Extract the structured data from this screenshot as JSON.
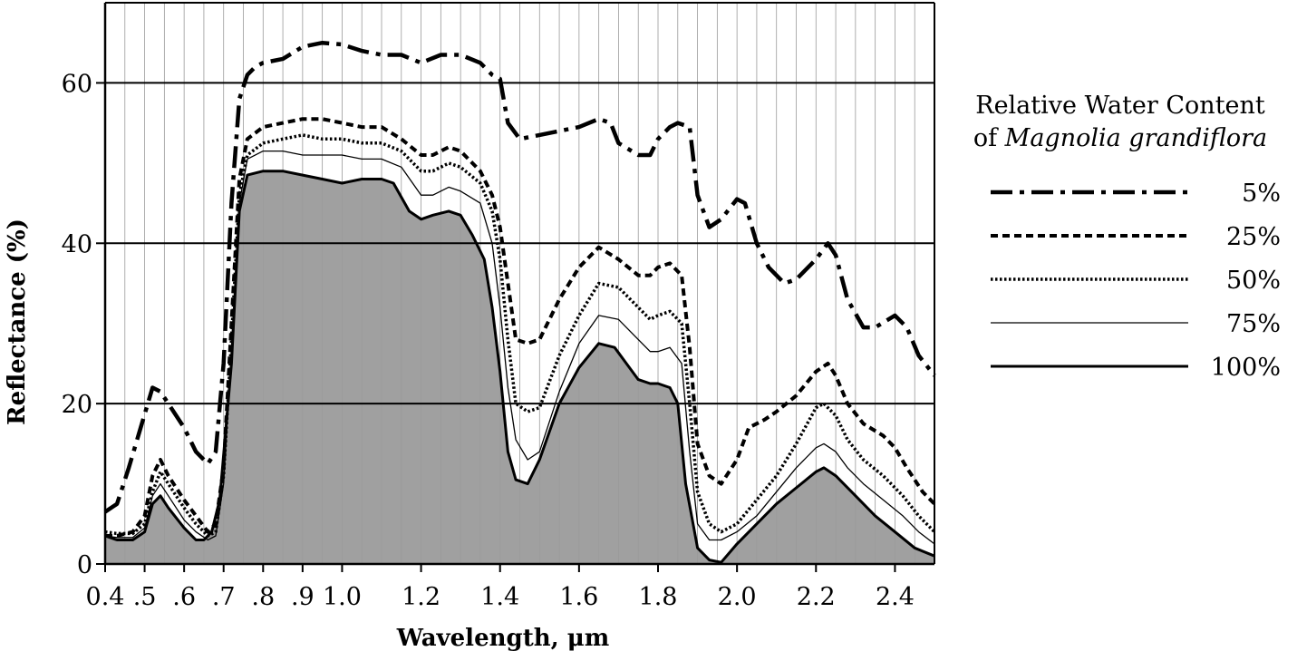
{
  "chart_data": {
    "type": "line",
    "title": "",
    "xlabel": "Wavelength, μm",
    "ylabel": "Reflectance (%)",
    "xlim": [
      0.4,
      2.5
    ],
    "ylim": [
      0,
      70
    ],
    "x_tick_labels": [
      "0.4",
      ".5",
      ".6",
      ".7",
      ".8",
      ".9",
      "1.0",
      "1.2",
      "1.4",
      "1.6",
      "1.8",
      "2.0",
      "2.2",
      "2.4"
    ],
    "x_ticks": [
      0.4,
      0.5,
      0.6,
      0.7,
      0.8,
      0.9,
      1.0,
      1.2,
      1.4,
      1.6,
      1.8,
      2.0,
      2.2,
      2.4
    ],
    "y_ticks": [
      0,
      20,
      40,
      60
    ],
    "y_tick_labels": [
      "0",
      "20",
      "40",
      "60"
    ],
    "vertical_grid_step": 0.05,
    "grid": true,
    "legend_placement": "right",
    "legend_title_line1": "Relative Water Content",
    "legend_title_prefix": "of ",
    "legend_title_species": "Magnolia grandiflora",
    "fill_under_series": "100%",
    "fill_color": "#a0a0a0",
    "series": [
      {
        "name": "5%",
        "style": "dashdot",
        "points": [
          [
            0.4,
            6.5
          ],
          [
            0.43,
            7.5
          ],
          [
            0.46,
            12
          ],
          [
            0.49,
            17
          ],
          [
            0.52,
            22
          ],
          [
            0.54,
            21.5
          ],
          [
            0.56,
            20
          ],
          [
            0.6,
            17
          ],
          [
            0.63,
            14
          ],
          [
            0.66,
            12.5
          ],
          [
            0.68,
            14
          ],
          [
            0.7,
            25
          ],
          [
            0.72,
            45
          ],
          [
            0.74,
            58
          ],
          [
            0.76,
            61
          ],
          [
            0.78,
            62
          ],
          [
            0.8,
            62.5
          ],
          [
            0.85,
            63
          ],
          [
            0.9,
            64.5
          ],
          [
            0.95,
            65
          ],
          [
            1.0,
            64.8
          ],
          [
            1.05,
            64
          ],
          [
            1.1,
            63.5
          ],
          [
            1.15,
            63.5
          ],
          [
            1.2,
            62.5
          ],
          [
            1.25,
            63.5
          ],
          [
            1.3,
            63.5
          ],
          [
            1.35,
            62.5
          ],
          [
            1.38,
            61
          ],
          [
            1.4,
            60.5
          ],
          [
            1.42,
            55
          ],
          [
            1.45,
            53
          ],
          [
            1.5,
            53.5
          ],
          [
            1.55,
            54
          ],
          [
            1.6,
            54.5
          ],
          [
            1.65,
            55.5
          ],
          [
            1.68,
            55
          ],
          [
            1.7,
            52.5
          ],
          [
            1.75,
            51
          ],
          [
            1.78,
            51
          ],
          [
            1.8,
            53
          ],
          [
            1.83,
            54.5
          ],
          [
            1.85,
            55
          ],
          [
            1.88,
            54.5
          ],
          [
            1.9,
            46
          ],
          [
            1.93,
            42
          ],
          [
            1.96,
            43
          ],
          [
            2.0,
            45.5
          ],
          [
            2.02,
            45
          ],
          [
            2.05,
            40
          ],
          [
            2.08,
            37
          ],
          [
            2.12,
            35
          ],
          [
            2.15,
            35.5
          ],
          [
            2.2,
            38
          ],
          [
            2.23,
            40
          ],
          [
            2.25,
            38.5
          ],
          [
            2.28,
            33
          ],
          [
            2.32,
            29.5
          ],
          [
            2.35,
            29.5
          ],
          [
            2.4,
            31
          ],
          [
            2.43,
            29.5
          ],
          [
            2.46,
            26
          ],
          [
            2.5,
            23.5
          ]
        ]
      },
      {
        "name": "25%",
        "style": "dashed",
        "points": [
          [
            0.4,
            3.5
          ],
          [
            0.43,
            3.5
          ],
          [
            0.47,
            4
          ],
          [
            0.5,
            6
          ],
          [
            0.52,
            11
          ],
          [
            0.54,
            13
          ],
          [
            0.56,
            11
          ],
          [
            0.6,
            8
          ],
          [
            0.63,
            6
          ],
          [
            0.66,
            4
          ],
          [
            0.68,
            5
          ],
          [
            0.7,
            12
          ],
          [
            0.72,
            30
          ],
          [
            0.74,
            48
          ],
          [
            0.76,
            53
          ],
          [
            0.8,
            54.5
          ],
          [
            0.85,
            55
          ],
          [
            0.9,
            55.5
          ],
          [
            0.95,
            55.5
          ],
          [
            1.0,
            55
          ],
          [
            1.05,
            54.5
          ],
          [
            1.1,
            54.5
          ],
          [
            1.15,
            53
          ],
          [
            1.2,
            51
          ],
          [
            1.23,
            51
          ],
          [
            1.27,
            52
          ],
          [
            1.3,
            51.5
          ],
          [
            1.35,
            49
          ],
          [
            1.38,
            46
          ],
          [
            1.4,
            42
          ],
          [
            1.42,
            35
          ],
          [
            1.44,
            28
          ],
          [
            1.47,
            27.5
          ],
          [
            1.5,
            28
          ],
          [
            1.55,
            33
          ],
          [
            1.6,
            37
          ],
          [
            1.65,
            39.5
          ],
          [
            1.7,
            38
          ],
          [
            1.75,
            36
          ],
          [
            1.78,
            36
          ],
          [
            1.8,
            37
          ],
          [
            1.83,
            37.5
          ],
          [
            1.86,
            36
          ],
          [
            1.88,
            27
          ],
          [
            1.9,
            15
          ],
          [
            1.93,
            11
          ],
          [
            1.96,
            10
          ],
          [
            2.0,
            13
          ],
          [
            2.03,
            17
          ],
          [
            2.07,
            18
          ],
          [
            2.1,
            19
          ],
          [
            2.15,
            21
          ],
          [
            2.2,
            24
          ],
          [
            2.23,
            25
          ],
          [
            2.25,
            23.5
          ],
          [
            2.28,
            20
          ],
          [
            2.32,
            17.5
          ],
          [
            2.37,
            16
          ],
          [
            2.4,
            14.5
          ],
          [
            2.43,
            12
          ],
          [
            2.47,
            9
          ],
          [
            2.5,
            7.5
          ]
        ]
      },
      {
        "name": "50%",
        "style": "dotted",
        "points": [
          [
            0.4,
            4
          ],
          [
            0.43,
            3.8
          ],
          [
            0.47,
            3.8
          ],
          [
            0.5,
            5
          ],
          [
            0.52,
            9
          ],
          [
            0.54,
            11.5
          ],
          [
            0.56,
            10
          ],
          [
            0.6,
            7
          ],
          [
            0.63,
            5
          ],
          [
            0.66,
            3.5
          ],
          [
            0.68,
            4
          ],
          [
            0.7,
            11
          ],
          [
            0.72,
            28
          ],
          [
            0.74,
            46
          ],
          [
            0.76,
            51
          ],
          [
            0.8,
            52.5
          ],
          [
            0.85,
            53
          ],
          [
            0.9,
            53.5
          ],
          [
            0.95,
            53
          ],
          [
            1.0,
            53
          ],
          [
            1.05,
            52.5
          ],
          [
            1.1,
            52.5
          ],
          [
            1.15,
            51.5
          ],
          [
            1.2,
            49
          ],
          [
            1.23,
            49
          ],
          [
            1.27,
            50
          ],
          [
            1.3,
            49.5
          ],
          [
            1.35,
            47.5
          ],
          [
            1.38,
            44
          ],
          [
            1.4,
            38
          ],
          [
            1.42,
            28
          ],
          [
            1.44,
            20
          ],
          [
            1.47,
            19
          ],
          [
            1.5,
            19.5
          ],
          [
            1.55,
            26
          ],
          [
            1.6,
            31
          ],
          [
            1.65,
            35
          ],
          [
            1.7,
            34.5
          ],
          [
            1.75,
            32
          ],
          [
            1.78,
            30.5
          ],
          [
            1.8,
            31
          ],
          [
            1.83,
            31.5
          ],
          [
            1.86,
            30
          ],
          [
            1.88,
            20
          ],
          [
            1.9,
            9
          ],
          [
            1.93,
            5
          ],
          [
            1.96,
            4
          ],
          [
            2.0,
            5
          ],
          [
            2.05,
            8
          ],
          [
            2.1,
            11
          ],
          [
            2.15,
            15
          ],
          [
            2.2,
            19.5
          ],
          [
            2.22,
            20
          ],
          [
            2.25,
            18.5
          ],
          [
            2.28,
            15.5
          ],
          [
            2.32,
            13
          ],
          [
            2.37,
            11
          ],
          [
            2.42,
            8.5
          ],
          [
            2.46,
            6
          ],
          [
            2.5,
            4
          ]
        ]
      },
      {
        "name": "75%",
        "style": "thin",
        "points": [
          [
            0.4,
            3.5
          ],
          [
            0.43,
            3.3
          ],
          [
            0.47,
            3.3
          ],
          [
            0.5,
            4.5
          ],
          [
            0.52,
            8.5
          ],
          [
            0.54,
            10
          ],
          [
            0.56,
            8.5
          ],
          [
            0.6,
            5.5
          ],
          [
            0.63,
            4
          ],
          [
            0.66,
            3
          ],
          [
            0.68,
            3.5
          ],
          [
            0.7,
            10
          ],
          [
            0.72,
            27
          ],
          [
            0.74,
            45
          ],
          [
            0.76,
            50.5
          ],
          [
            0.8,
            51.5
          ],
          [
            0.85,
            51.5
          ],
          [
            0.9,
            51
          ],
          [
            0.95,
            51
          ],
          [
            1.0,
            51
          ],
          [
            1.05,
            50.5
          ],
          [
            1.1,
            50.5
          ],
          [
            1.15,
            49.5
          ],
          [
            1.2,
            46
          ],
          [
            1.23,
            46
          ],
          [
            1.27,
            47
          ],
          [
            1.3,
            46.5
          ],
          [
            1.35,
            45
          ],
          [
            1.38,
            40
          ],
          [
            1.4,
            32
          ],
          [
            1.42,
            22
          ],
          [
            1.44,
            15.5
          ],
          [
            1.47,
            13
          ],
          [
            1.5,
            14
          ],
          [
            1.55,
            21.5
          ],
          [
            1.6,
            27.5
          ],
          [
            1.65,
            31
          ],
          [
            1.7,
            30.5
          ],
          [
            1.75,
            28
          ],
          [
            1.78,
            26.5
          ],
          [
            1.8,
            26.5
          ],
          [
            1.83,
            27
          ],
          [
            1.86,
            25
          ],
          [
            1.88,
            14
          ],
          [
            1.9,
            5
          ],
          [
            1.93,
            3
          ],
          [
            1.96,
            3
          ],
          [
            2.0,
            4
          ],
          [
            2.05,
            6
          ],
          [
            2.1,
            9
          ],
          [
            2.15,
            12
          ],
          [
            2.2,
            14.5
          ],
          [
            2.22,
            15
          ],
          [
            2.25,
            14
          ],
          [
            2.28,
            12
          ],
          [
            2.32,
            10
          ],
          [
            2.37,
            8
          ],
          [
            2.42,
            6
          ],
          [
            2.46,
            4
          ],
          [
            2.5,
            2.5
          ]
        ]
      },
      {
        "name": "100%",
        "style": "solid",
        "points": [
          [
            0.4,
            3.5
          ],
          [
            0.43,
            3
          ],
          [
            0.47,
            3
          ],
          [
            0.5,
            4
          ],
          [
            0.52,
            7.5
          ],
          [
            0.54,
            8.5
          ],
          [
            0.56,
            7
          ],
          [
            0.6,
            4.5
          ],
          [
            0.63,
            3
          ],
          [
            0.65,
            3
          ],
          [
            0.67,
            4
          ],
          [
            0.69,
            8
          ],
          [
            0.72,
            25
          ],
          [
            0.74,
            44
          ],
          [
            0.76,
            48.5
          ],
          [
            0.8,
            49
          ],
          [
            0.85,
            49
          ],
          [
            0.9,
            48.5
          ],
          [
            0.95,
            48
          ],
          [
            1.0,
            47.5
          ],
          [
            1.05,
            48
          ],
          [
            1.1,
            48
          ],
          [
            1.13,
            47.5
          ],
          [
            1.17,
            44
          ],
          [
            1.2,
            43
          ],
          [
            1.23,
            43.5
          ],
          [
            1.27,
            44
          ],
          [
            1.3,
            43.5
          ],
          [
            1.33,
            41
          ],
          [
            1.36,
            38
          ],
          [
            1.38,
            32
          ],
          [
            1.4,
            24
          ],
          [
            1.42,
            14
          ],
          [
            1.44,
            10.5
          ],
          [
            1.47,
            10
          ],
          [
            1.5,
            13
          ],
          [
            1.55,
            20
          ],
          [
            1.6,
            24.5
          ],
          [
            1.65,
            27.5
          ],
          [
            1.69,
            27
          ],
          [
            1.72,
            25
          ],
          [
            1.75,
            23
          ],
          [
            1.78,
            22.5
          ],
          [
            1.8,
            22.5
          ],
          [
            1.83,
            22
          ],
          [
            1.85,
            20
          ],
          [
            1.87,
            10
          ],
          [
            1.9,
            2
          ],
          [
            1.93,
            0.5
          ],
          [
            1.96,
            0.2
          ],
          [
            2.0,
            2.5
          ],
          [
            2.05,
            5
          ],
          [
            2.1,
            7.5
          ],
          [
            2.15,
            9.5
          ],
          [
            2.2,
            11.5
          ],
          [
            2.22,
            12
          ],
          [
            2.25,
            11
          ],
          [
            2.3,
            8.5
          ],
          [
            2.35,
            6
          ],
          [
            2.4,
            4
          ],
          [
            2.45,
            2
          ],
          [
            2.5,
            1
          ]
        ]
      }
    ]
  }
}
